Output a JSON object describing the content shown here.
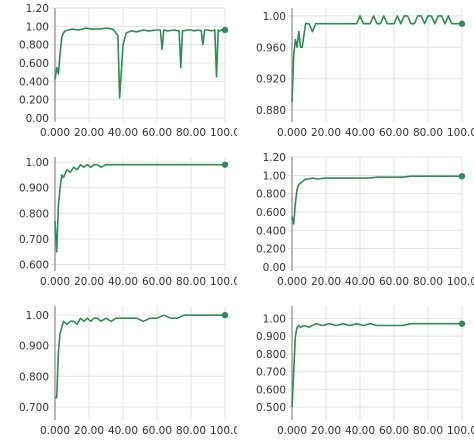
{
  "chart_data": [
    {
      "type": "line",
      "title": "",
      "xlabel": "",
      "ylabel": "",
      "xlim": [
        0,
        100
      ],
      "ylim": [
        0,
        1.2
      ],
      "xticks": [
        "0.000",
        "20.00",
        "40.00",
        "60.00",
        "80.00",
        "100.0"
      ],
      "xtick_values": [
        0,
        20,
        40,
        60,
        80,
        100
      ],
      "yticks": [
        "0.00",
        "0.200",
        "0.400",
        "0.600",
        "0.800",
        "1.00",
        "1.20"
      ],
      "ytick_values": [
        0,
        0.2,
        0.4,
        0.6,
        0.8,
        1.0,
        1.2
      ],
      "color": "#2e8b57",
      "grid": true,
      "series": [
        {
          "x": [
            0,
            1,
            2,
            3,
            4,
            5,
            6,
            8,
            10,
            14,
            18,
            22,
            26,
            30,
            34,
            37,
            38,
            39,
            40,
            42,
            45,
            48,
            52,
            55,
            60,
            62,
            63,
            64,
            66,
            70,
            73,
            74,
            75,
            78,
            80,
            82,
            84,
            86,
            87,
            88,
            90,
            92,
            94,
            95,
            96,
            97,
            98,
            100
          ],
          "y": [
            0.42,
            0.55,
            0.48,
            0.7,
            0.88,
            0.93,
            0.95,
            0.96,
            0.97,
            0.96,
            0.98,
            0.97,
            0.97,
            0.98,
            0.97,
            0.9,
            0.22,
            0.5,
            0.8,
            0.93,
            0.95,
            0.94,
            0.96,
            0.95,
            0.96,
            0.96,
            0.75,
            0.96,
            0.95,
            0.96,
            0.95,
            0.55,
            0.95,
            0.96,
            0.96,
            0.95,
            0.96,
            0.95,
            0.8,
            0.96,
            0.96,
            0.95,
            0.96,
            0.45,
            0.96,
            0.95,
            0.96,
            0.96
          ]
        }
      ]
    },
    {
      "type": "line",
      "title": "",
      "xlabel": "",
      "ylabel": "",
      "xlim": [
        0,
        100
      ],
      "ylim": [
        0.87,
        1.01
      ],
      "xticks": [
        "0.000",
        "20.00",
        "40.00",
        "60.00",
        "80.00",
        "100.0"
      ],
      "xtick_values": [
        0,
        20,
        40,
        60,
        80,
        100
      ],
      "yticks": [
        "0.880",
        "0.920",
        "0.960",
        "1.00"
      ],
      "ytick_values": [
        0.88,
        0.92,
        0.96,
        1.0
      ],
      "color": "#2e8b57",
      "grid": true,
      "series": [
        {
          "x": [
            0,
            1,
            2,
            3,
            4,
            5,
            6,
            8,
            10,
            12,
            14,
            16,
            18,
            20,
            22,
            24,
            26,
            28,
            30,
            32,
            34,
            36,
            38,
            40,
            42,
            44,
            46,
            48,
            50,
            52,
            54,
            56,
            58,
            60,
            62,
            64,
            66,
            68,
            70,
            72,
            74,
            76,
            78,
            80,
            82,
            84,
            86,
            88,
            90,
            92,
            94,
            96,
            98,
            100
          ],
          "y": [
            0.89,
            0.95,
            0.97,
            0.96,
            0.98,
            0.96,
            0.96,
            0.99,
            0.99,
            0.98,
            0.99,
            0.99,
            0.99,
            0.99,
            0.99,
            0.99,
            0.99,
            0.99,
            0.99,
            0.99,
            0.99,
            0.99,
            0.99,
            1.0,
            0.99,
            0.99,
            0.99,
            1.0,
            0.99,
            0.99,
            1.0,
            0.99,
            0.99,
            0.99,
            1.0,
            0.99,
            1.0,
            1.0,
            0.99,
            0.99,
            1.0,
            1.0,
            0.99,
            1.0,
            1.0,
            0.99,
            1.0,
            1.0,
            0.99,
            1.0,
            0.99,
            0.99,
            0.99,
            0.99
          ]
        }
      ]
    },
    {
      "type": "line",
      "title": "",
      "xlabel": "",
      "ylabel": "",
      "xlim": [
        0,
        100
      ],
      "ylim": [
        0.59,
        1.02
      ],
      "xticks": [
        "0.000",
        "20.00",
        "40.00",
        "60.00",
        "80.00",
        "100.0"
      ],
      "xtick_values": [
        0,
        20,
        40,
        60,
        80,
        100
      ],
      "yticks": [
        "0.600",
        "0.700",
        "0.800",
        "0.900",
        "1.00"
      ],
      "ytick_values": [
        0.6,
        0.7,
        0.8,
        0.9,
        1.0
      ],
      "color": "#2e8b57",
      "grid": true,
      "series": [
        {
          "x": [
            0,
            1,
            2,
            3,
            4,
            5,
            7,
            9,
            11,
            13,
            15,
            17,
            19,
            21,
            23,
            25,
            27,
            30,
            34,
            38,
            45,
            55,
            65,
            75,
            85,
            100
          ],
          "y": [
            0.77,
            0.65,
            0.83,
            0.9,
            0.95,
            0.94,
            0.97,
            0.96,
            0.98,
            0.97,
            0.99,
            0.98,
            0.99,
            0.98,
            0.99,
            0.99,
            0.98,
            0.99,
            0.99,
            0.99,
            0.99,
            0.99,
            0.99,
            0.99,
            0.99,
            0.99
          ]
        }
      ]
    },
    {
      "type": "line",
      "title": "",
      "xlabel": "",
      "ylabel": "",
      "xlim": [
        0,
        100
      ],
      "ylim": [
        0,
        1.2
      ],
      "xticks": [
        "0.000",
        "20.00",
        "40.00",
        "60.00",
        "80.00",
        "100.0"
      ],
      "xtick_values": [
        0,
        20,
        40,
        60,
        80,
        100
      ],
      "yticks": [
        "0.00",
        "0.200",
        "0.400",
        "0.600",
        "0.800",
        "1.00",
        "1.20"
      ],
      "ytick_values": [
        0,
        0.2,
        0.4,
        0.6,
        0.8,
        1.0,
        1.2
      ],
      "color": "#2e8b57",
      "grid": true,
      "series": [
        {
          "x": [
            0,
            1,
            2,
            3,
            4,
            6,
            8,
            10,
            12,
            15,
            20,
            25,
            30,
            35,
            40,
            45,
            50,
            55,
            60,
            65,
            70,
            75,
            80,
            85,
            90,
            95,
            100
          ],
          "y": [
            0.55,
            0.47,
            0.7,
            0.85,
            0.9,
            0.93,
            0.96,
            0.96,
            0.97,
            0.96,
            0.97,
            0.97,
            0.97,
            0.97,
            0.97,
            0.97,
            0.98,
            0.98,
            0.98,
            0.98,
            0.99,
            0.99,
            0.99,
            0.99,
            0.99,
            0.99,
            0.99
          ]
        }
      ]
    },
    {
      "type": "line",
      "title": "",
      "xlabel": "",
      "ylabel": "",
      "xlim": [
        0,
        100
      ],
      "ylim": [
        0.67,
        1.03
      ],
      "xticks": [
        "0.000",
        "20.00",
        "40.00",
        "60.00",
        "80.00",
        "100.0"
      ],
      "xtick_values": [
        0,
        20,
        40,
        60,
        80,
        100
      ],
      "yticks": [
        "0.700",
        "0.800",
        "0.900",
        "1.00"
      ],
      "ytick_values": [
        0.7,
        0.8,
        0.9,
        1.0
      ],
      "color": "#2e8b57",
      "grid": true,
      "series": [
        {
          "x": [
            0,
            1,
            2,
            3,
            4,
            5,
            7,
            9,
            11,
            13,
            15,
            17,
            19,
            21,
            23,
            25,
            27,
            30,
            33,
            36,
            40,
            44,
            48,
            52,
            56,
            60,
            64,
            68,
            72,
            76,
            80,
            84,
            88,
            92,
            96,
            100
          ],
          "y": [
            0.73,
            0.73,
            0.88,
            0.94,
            0.96,
            0.98,
            0.97,
            0.98,
            0.98,
            0.97,
            0.99,
            0.98,
            0.99,
            0.98,
            0.99,
            0.99,
            0.98,
            0.99,
            0.98,
            0.99,
            0.99,
            0.99,
            0.99,
            0.98,
            0.99,
            0.99,
            1.0,
            0.99,
            0.99,
            1.0,
            1.0,
            1.0,
            1.0,
            1.0,
            1.0,
            1.0
          ]
        }
      ]
    },
    {
      "type": "line",
      "title": "",
      "xlabel": "",
      "ylabel": "",
      "xlim": [
        0,
        100
      ],
      "ylim": [
        0.45,
        1.07
      ],
      "xticks": [
        "0.000",
        "20.00",
        "40.00",
        "60.00",
        "80.00",
        "100.0"
      ],
      "xtick_values": [
        0,
        20,
        40,
        60,
        80,
        100
      ],
      "yticks": [
        "0.500",
        "0.600",
        "0.700",
        "0.800",
        "0.900",
        "1.00"
      ],
      "ytick_values": [
        0.5,
        0.6,
        0.7,
        0.8,
        0.9,
        1.0
      ],
      "color": "#2e8b57",
      "grid": true,
      "series": [
        {
          "x": [
            0,
            1,
            2,
            3,
            4,
            5,
            7,
            10,
            14,
            18,
            22,
            26,
            30,
            34,
            38,
            42,
            46,
            50,
            55,
            60,
            65,
            70,
            75,
            80,
            85,
            90,
            95,
            100
          ],
          "y": [
            0.5,
            0.7,
            0.9,
            0.95,
            0.96,
            0.95,
            0.96,
            0.95,
            0.97,
            0.96,
            0.97,
            0.96,
            0.97,
            0.96,
            0.97,
            0.96,
            0.97,
            0.96,
            0.96,
            0.96,
            0.96,
            0.97,
            0.97,
            0.97,
            0.97,
            0.97,
            0.97,
            0.97
          ]
        }
      ]
    }
  ]
}
